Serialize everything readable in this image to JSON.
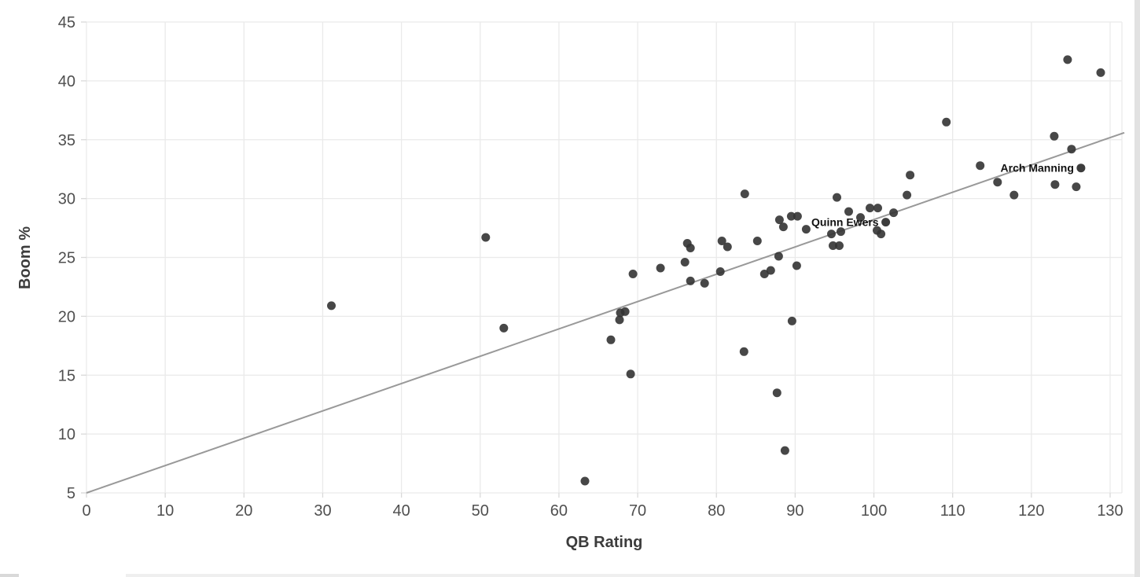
{
  "chart_data": {
    "type": "scatter",
    "title": "",
    "xlabel": "QB Rating",
    "ylabel": "Boom %",
    "xlim": [
      0,
      130
    ],
    "ylim": [
      5,
      45
    ],
    "x_ticks": [
      0,
      10,
      20,
      30,
      40,
      50,
      60,
      70,
      80,
      90,
      100,
      110,
      120,
      130
    ],
    "y_ticks": [
      5,
      10,
      15,
      20,
      25,
      30,
      35,
      40,
      45
    ],
    "grid": true,
    "legend": "none",
    "points": [
      [
        31.1,
        20.9
      ],
      [
        50.7,
        26.7
      ],
      [
        53.0,
        19.0
      ],
      [
        63.3,
        6.0
      ],
      [
        66.6,
        18.0
      ],
      [
        67.7,
        19.7
      ],
      [
        67.8,
        20.3
      ],
      [
        68.4,
        20.4
      ],
      [
        69.1,
        15.1
      ],
      [
        69.4,
        23.6
      ],
      [
        72.9,
        24.1
      ],
      [
        76.0,
        24.6
      ],
      [
        76.3,
        26.2
      ],
      [
        76.7,
        25.8
      ],
      [
        76.7,
        23.0
      ],
      [
        78.5,
        22.8
      ],
      [
        80.5,
        23.8
      ],
      [
        80.7,
        26.4
      ],
      [
        81.4,
        25.9
      ],
      [
        83.5,
        17.0
      ],
      [
        83.6,
        30.4
      ],
      [
        85.2,
        26.4
      ],
      [
        86.1,
        23.6
      ],
      [
        86.9,
        23.9
      ],
      [
        87.7,
        13.5
      ],
      [
        87.9,
        25.1
      ],
      [
        88.0,
        28.2
      ],
      [
        88.5,
        27.6
      ],
      [
        88.7,
        8.6
      ],
      [
        89.5,
        28.5
      ],
      [
        89.6,
        19.6
      ],
      [
        90.2,
        24.3
      ],
      [
        90.3,
        28.5
      ],
      [
        91.4,
        27.4
      ],
      [
        94.6,
        27.0
      ],
      [
        94.8,
        26.0
      ],
      [
        95.3,
        30.1
      ],
      [
        95.6,
        26.0
      ],
      [
        95.8,
        27.2
      ],
      [
        96.8,
        28.9
      ],
      [
        98.3,
        28.4
      ],
      [
        99.5,
        29.2
      ],
      [
        100.4,
        27.3
      ],
      [
        100.5,
        29.2
      ],
      [
        100.9,
        27.0
      ],
      [
        102.5,
        28.8
      ],
      [
        104.2,
        30.3
      ],
      [
        104.6,
        32.0
      ],
      [
        109.2,
        36.5
      ],
      [
        113.5,
        32.8
      ],
      [
        115.7,
        31.4
      ],
      [
        117.8,
        30.3
      ],
      [
        122.9,
        35.3
      ],
      [
        123.0,
        31.2
      ],
      [
        124.6,
        41.8
      ],
      [
        125.1,
        34.2
      ],
      [
        125.7,
        31.0
      ],
      [
        128.8,
        40.7
      ]
    ],
    "labeled_points": [
      {
        "label": "Quinn Ewers",
        "x": 101.5,
        "y": 28.0
      },
      {
        "label": "Arch Manning",
        "x": 126.3,
        "y": 32.6
      }
    ],
    "trendline": {
      "x1": 0,
      "y1": 5.0,
      "x2": 131.8,
      "y2": 35.6
    },
    "colors": {
      "dot": "#333333",
      "trend": "#999999",
      "grid": "#eaeaea",
      "tick": "#d9d9d9",
      "tick_label": "#4f4f4f",
      "axis_title": "#3c3c3c",
      "annotation": "#111111",
      "background": "#ffffff"
    }
  },
  "scrollbars": {
    "right": "vertical-scrollbar",
    "bottom": "horizontal-scrollbar"
  }
}
